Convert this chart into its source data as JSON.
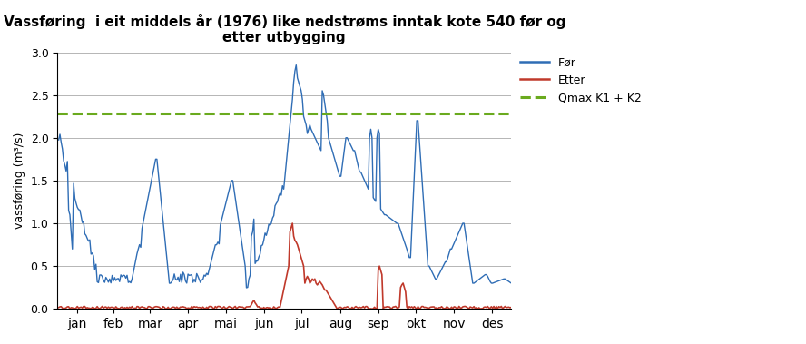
{
  "title": "Vassføring  i eit middels år (1976) like nedstrøms inntak kote 540 før og\netter utbygging",
  "ylabel": "vassføring (m³/s)",
  "xlabel_ticks": [
    "jan",
    "feb",
    "mar",
    "apr",
    "mai",
    "jun",
    "jul",
    "aug",
    "sep",
    "okt",
    "nov",
    "des"
  ],
  "ylim": [
    0.0,
    3.0
  ],
  "yticks": [
    0.0,
    0.5,
    1.0,
    1.5,
    2.0,
    2.5,
    3.0
  ],
  "qmax_line": 2.28,
  "qmax_color": "#6aaa1e",
  "blue_color": "#2f6db5",
  "red_color": "#c0392b",
  "legend_labels": [
    "Før",
    "Etter",
    "Qmax K1 + K2"
  ],
  "background_color": "#ffffff",
  "plot_bg_color": "#ffffff"
}
